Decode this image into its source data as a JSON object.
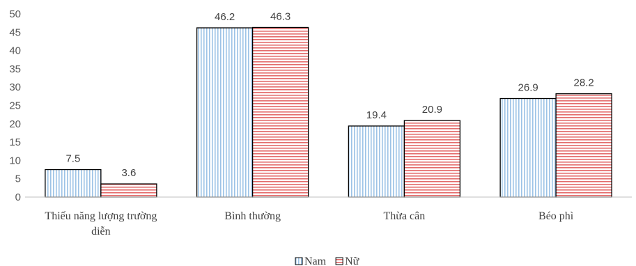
{
  "chart_data": {
    "type": "bar",
    "categories": [
      "Thiếu năng lượng trường diễn",
      "Bình thường",
      "Thừa cân",
      "Béo phì"
    ],
    "category_lines": [
      [
        "Thiếu năng lượng trường",
        "diễn"
      ],
      [
        "Bình thường"
      ],
      [
        "Thừa cân"
      ],
      [
        "Béo phì"
      ]
    ],
    "series": [
      {
        "name": "Nam",
        "values": [
          7.5,
          46.2,
          19.4,
          26.9
        ],
        "color": "#9dc3e6",
        "pattern": "vertical-stripes"
      },
      {
        "name": "Nữ",
        "values": [
          3.6,
          46.3,
          20.9,
          28.2
        ],
        "color": "#e46c6c",
        "pattern": "horizontal-stripes"
      }
    ],
    "data_labels": [
      [
        "7.5",
        "46.2",
        "19.4",
        "26.9"
      ],
      [
        "3.6",
        "46.3",
        "20.9",
        "28.2"
      ]
    ],
    "ylim": [
      0,
      50
    ],
    "yticks": [
      0,
      5,
      10,
      15,
      20,
      25,
      30,
      35,
      40,
      45,
      50
    ],
    "grid": false,
    "legend_position": "bottom",
    "title": "",
    "xlabel": "",
    "ylabel": ""
  }
}
